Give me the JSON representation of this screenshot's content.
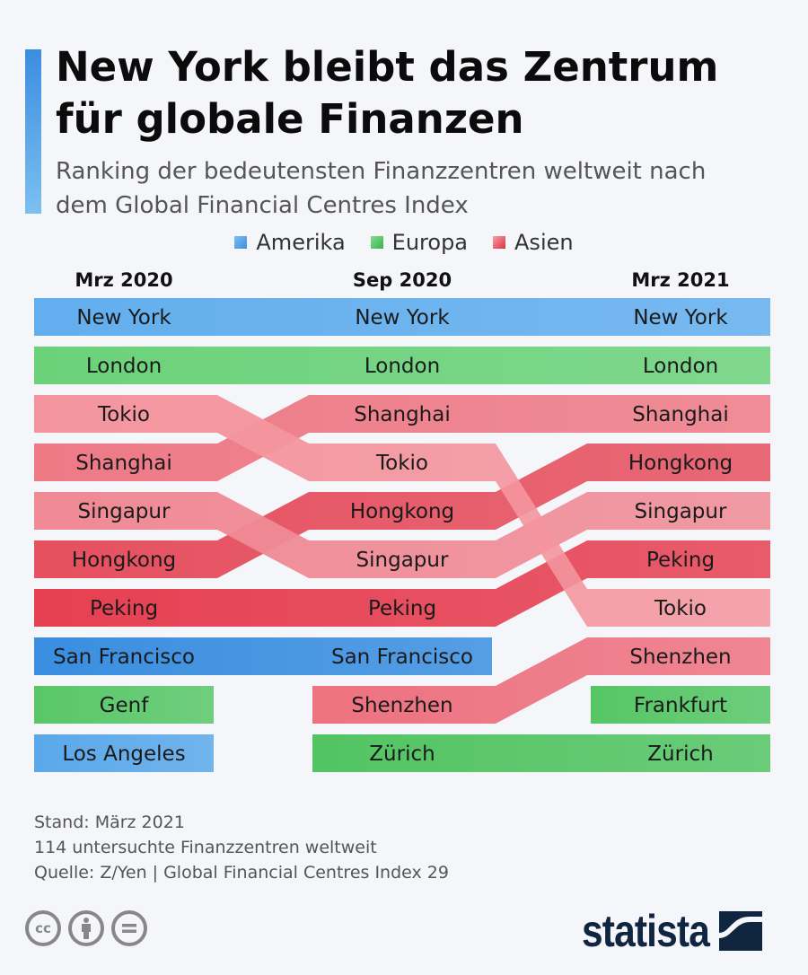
{
  "header": {
    "title_line1": "New York bleibt das Zentrum",
    "title_line2": "für globale Finanzen",
    "subtitle_line1": "Ranking der bedeutensten Finanzzentren weltweit nach",
    "subtitle_line2": "dem Global Financial Centres Index"
  },
  "legend": [
    {
      "label": "Amerika",
      "color": "#4a9be6"
    },
    {
      "label": "Europa",
      "color": "#4cbc5a"
    },
    {
      "label": "Asien",
      "color": "#e04a5a"
    }
  ],
  "chart_data": {
    "type": "bump",
    "periods": [
      "Mrz 2020",
      "Sep 2020",
      "Mrz 2021"
    ],
    "rankings": [
      [
        "New York",
        "London",
        "Tokio",
        "Shanghai",
        "Singapur",
        "Hongkong",
        "Peking",
        "San Francisco",
        "Genf",
        "Los Angeles"
      ],
      [
        "New York",
        "London",
        "Shanghai",
        "Tokio",
        "Hongkong",
        "Singapur",
        "Peking",
        "San Francisco",
        "Shenzhen",
        "Zürich"
      ],
      [
        "New York",
        "London",
        "Shanghai",
        "Hongkong",
        "Singapur",
        "Peking",
        "Tokio",
        "Shenzhen",
        "Frankfurt",
        "Zürich"
      ]
    ],
    "regions": {
      "New York": "Amerika",
      "San Francisco": "Amerika",
      "Los Angeles": "Amerika",
      "London": "Europa",
      "Genf": "Europa",
      "Frankfurt": "Europa",
      "Zürich": "Europa",
      "Tokio": "Asien",
      "Shanghai": "Asien",
      "Singapur": "Asien",
      "Hongkong": "Asien",
      "Peking": "Asien",
      "Shenzhen": "Asien"
    },
    "colors": {
      "New York": "#62aeee",
      "London": "#6bd27a",
      "Tokio": "#f4959e",
      "Shanghai": "#ee7a86",
      "Singapur": "#f08a95",
      "Hongkong": "#e6505f",
      "Peking": "#e64052",
      "San Francisco": "#3a8ee0",
      "Genf": "#58c767",
      "Los Angeles": "#5aa8ea",
      "Shenzhen": "#ee7280",
      "Zürich": "#52c462",
      "Frankfurt": "#56c665"
    }
  },
  "footer": {
    "stand": "Stand: März 2021",
    "count": "114 untersuchte Finanzzentren weltweit",
    "source": "Quelle: Z/Yen | Global Financial Centres Index 29"
  },
  "logo": {
    "text": "statista"
  }
}
